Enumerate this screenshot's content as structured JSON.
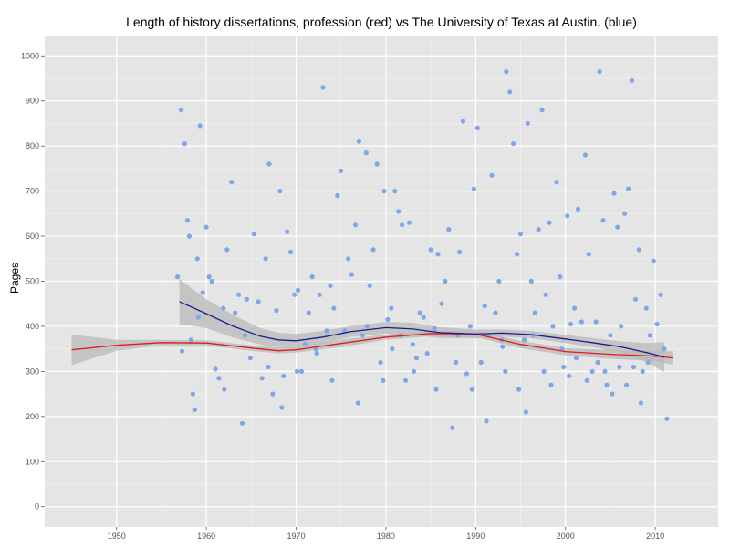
{
  "chart_data": {
    "type": "scatter",
    "title": "Length of history dissertations, profession (red) vs The University of Texas at Austin. (blue)",
    "xlabel": "",
    "ylabel": "Pages",
    "xlim": [
      1942,
      2017
    ],
    "ylim": [
      -45,
      1045
    ],
    "x_ticks": [
      1950,
      1960,
      1970,
      1980,
      1990,
      2000,
      2010
    ],
    "y_ticks": [
      0,
      100,
      200,
      300,
      400,
      500,
      600,
      700,
      800,
      900,
      1000
    ],
    "grid": true,
    "colors": {
      "points": "#7ea6ea",
      "profession": "#e11b1b",
      "ut_austin": "#1c1c8c",
      "band": "#b8b8b8",
      "panel": "#e5e5e5",
      "grid": "#ffffff"
    },
    "series": [
      {
        "kind": "points",
        "color": "#7ea6ea",
        "x": [
          1956.8,
          1957.2,
          1957.6,
          1957.9,
          1958.1,
          1958.3,
          1958.5,
          1958.7,
          1959.0,
          1959.3,
          1959.6,
          1960.0,
          1960.3,
          1960.6,
          1961.0,
          1961.4,
          1961.9,
          1962.3,
          1962.8,
          1963.2,
          1963.6,
          1964.0,
          1964.5,
          1964.9,
          1965.3,
          1965.8,
          1966.2,
          1966.6,
          1967.0,
          1967.4,
          1967.8,
          1968.2,
          1968.6,
          1969.0,
          1969.4,
          1969.8,
          1970.2,
          1970.6,
          1971.0,
          1971.4,
          1971.8,
          1972.2,
          1972.6,
          1973.0,
          1973.4,
          1973.8,
          1974.2,
          1974.6,
          1975.0,
          1975.4,
          1975.8,
          1976.2,
          1976.6,
          1977.0,
          1977.4,
          1977.8,
          1978.2,
          1978.6,
          1979.0,
          1979.4,
          1979.8,
          1980.2,
          1980.6,
          1981.0,
          1981.4,
          1981.8,
          1982.2,
          1982.6,
          1983.0,
          1983.4,
          1983.8,
          1984.2,
          1984.6,
          1985.0,
          1985.4,
          1985.8,
          1986.2,
          1986.6,
          1987.0,
          1987.4,
          1987.8,
          1988.2,
          1988.6,
          1989.0,
          1989.4,
          1989.8,
          1990.2,
          1990.6,
          1991.0,
          1991.4,
          1991.8,
          1992.2,
          1992.6,
          1993.0,
          1993.4,
          1993.8,
          1994.2,
          1994.6,
          1995.0,
          1995.4,
          1995.8,
          1996.2,
          1996.6,
          1997.0,
          1997.4,
          1997.8,
          1998.2,
          1998.6,
          1999.0,
          1999.4,
          1999.8,
          2000.2,
          2000.6,
          2001.0,
          2001.4,
          2001.8,
          2002.2,
          2002.6,
          2003.0,
          2003.4,
          2003.8,
          2004.2,
          2004.6,
          2005.0,
          2005.4,
          2005.8,
          2006.2,
          2006.6,
          2007.0,
          2007.4,
          2007.8,
          2008.2,
          2008.6,
          2009.0,
          2009.4,
          2009.8,
          2010.2,
          2010.6,
          2011.0,
          2011.3,
          1957.3,
          1959.1,
          1962.0,
          1964.3,
          1966.9,
          1968.4,
          1970.1,
          1972.3,
          1974.0,
          1976.9,
          1977.9,
          1979.7,
          1980.7,
          1981.6,
          1983.1,
          1985.6,
          1988.0,
          1989.6,
          1991.2,
          1992.9,
          1993.3,
          1994.8,
          1995.6,
          1996.4,
          1997.6,
          1998.4,
          1999.6,
          2000.4,
          2001.2,
          2002.4,
          2003.6,
          2004.4,
          2005.2,
          2006.0,
          2006.8,
          2007.6,
          2008.4,
          2009.2
        ],
        "y": [
          510,
          880,
          805,
          635,
          600,
          370,
          250,
          215,
          550,
          845,
          475,
          620,
          510,
          500,
          305,
          285,
          440,
          570,
          720,
          430,
          470,
          185,
          460,
          330,
          605,
          455,
          285,
          550,
          760,
          250,
          435,
          700,
          290,
          610,
          565,
          470,
          480,
          300,
          360,
          430,
          510,
          350,
          470,
          930,
          390,
          490,
          440,
          690,
          745,
          390,
          550,
          515,
          625,
          810,
          380,
          785,
          490,
          570,
          760,
          320,
          700,
          415,
          440,
          700,
          655,
          625,
          280,
          630,
          360,
          330,
          430,
          420,
          340,
          570,
          395,
          560,
          450,
          500,
          615,
          175,
          320,
          565,
          855,
          295,
          400,
          705,
          840,
          320,
          445,
          380,
          735,
          430,
          500,
          355,
          965,
          920,
          805,
          560,
          605,
          370,
          850,
          500,
          430,
          615,
          880,
          470,
          630,
          400,
          720,
          510,
          310,
          645,
          405,
          440,
          660,
          410,
          780,
          560,
          300,
          410,
          965,
          635,
          270,
          380,
          695,
          620,
          400,
          650,
          705,
          945,
          460,
          570,
          300,
          440,
          380,
          545,
          405,
          470,
          350,
          195,
          345,
          420,
          260,
          380,
          310,
          220,
          300,
          340,
          280,
          230,
          400,
          280,
          350,
          380,
          300,
          260,
          380,
          260,
          190,
          370,
          300,
          260,
          210,
          380,
          300,
          270,
          350,
          290,
          330,
          280,
          320,
          300,
          250,
          310,
          270,
          310,
          230,
          320
        ],
        "size": 2.6
      },
      {
        "kind": "smooth",
        "name": "profession",
        "color": "#e11b1b",
        "x": [
          1945,
          1950,
          1955,
          1960,
          1965,
          1968,
          1970,
          1975,
          1980,
          1985,
          1990,
          1995,
          2000,
          2005,
          2010,
          2012
        ],
        "y": [
          348,
          358,
          364,
          363,
          352,
          346,
          348,
          362,
          376,
          384,
          383,
          360,
          344,
          338,
          334,
          330
        ],
        "band_x": [
          1945,
          1950,
          1955,
          1960,
          1965,
          1968,
          1970,
          1975,
          1980,
          1985,
          1990,
          1995,
          2000,
          2005,
          2010,
          2012
        ],
        "band_upper": [
          382,
          370,
          370,
          369,
          358,
          354,
          354,
          370,
          382,
          390,
          390,
          368,
          352,
          348,
          345,
          345
        ],
        "band_lower": [
          314,
          346,
          358,
          357,
          346,
          340,
          342,
          354,
          370,
          378,
          376,
          352,
          336,
          328,
          323,
          315
        ]
      },
      {
        "kind": "smooth",
        "name": "ut_austin",
        "color": "#1c1c8c",
        "x": [
          1957,
          1960,
          1963,
          1966,
          1968,
          1970,
          1973,
          1976,
          1980,
          1983,
          1986,
          1990,
          1993,
          1996,
          2000,
          2003,
          2006,
          2009,
          2011
        ],
        "y": [
          455,
          428,
          400,
          378,
          370,
          368,
          376,
          388,
          397,
          394,
          386,
          383,
          385,
          382,
          372,
          364,
          355,
          342,
          332
        ],
        "band_x": [
          1957,
          1960,
          1963,
          1966,
          1968,
          1970,
          1973,
          1976,
          1980,
          1983,
          1986,
          1990,
          1993,
          1996,
          2000,
          2003,
          2006,
          2009,
          2011
        ],
        "band_upper": [
          505,
          460,
          425,
          396,
          386,
          383,
          390,
          400,
          410,
          408,
          398,
          393,
          393,
          390,
          381,
          374,
          367,
          363,
          365
        ],
        "band_lower": [
          405,
          396,
          375,
          360,
          354,
          353,
          362,
          376,
          384,
          380,
          374,
          373,
          377,
          374,
          363,
          354,
          343,
          321,
          299
        ]
      }
    ]
  }
}
